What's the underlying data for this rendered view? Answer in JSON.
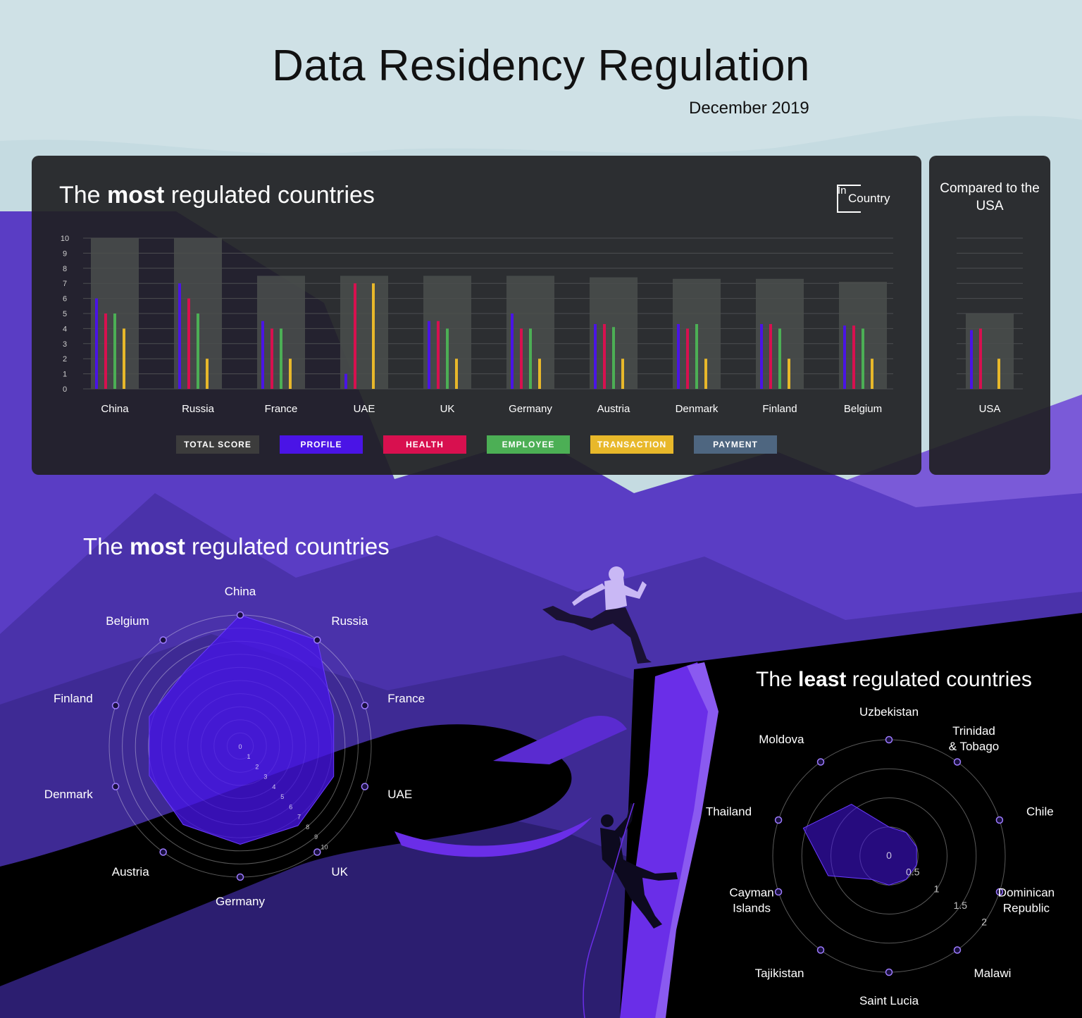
{
  "header": {
    "title": "Data Residency Regulation",
    "date": "December 2019"
  },
  "bar_panel": {
    "title_prefix": "The ",
    "title_bold": "most",
    "title_suffix": " regulated countries",
    "logo_in": "In",
    "logo_country": "Country"
  },
  "usa_panel": {
    "title": "Compared to the USA"
  },
  "legend": [
    {
      "label": "TOTAL SCORE",
      "color": "#3c3c3c"
    },
    {
      "label": "PROFILE",
      "color": "#4a14e6"
    },
    {
      "label": "HEALTH",
      "color": "#d8104f"
    },
    {
      "label": "EMPLOYEE",
      "color": "#4caf55"
    },
    {
      "label": "TRANSACTION",
      "color": "#e8b82a"
    },
    {
      "label": "PAYMENT",
      "color": "#4e6680"
    }
  ],
  "radar_most": {
    "title_prefix": "The ",
    "title_bold": "most",
    "title_suffix": " regulated countries"
  },
  "radar_least": {
    "title_prefix": "The ",
    "title_bold": "least",
    "title_suffix": " regulated countries"
  },
  "chart_data": [
    {
      "type": "bar",
      "title": "The most regulated countries",
      "categories": [
        "China",
        "Russia",
        "France",
        "UAE",
        "UK",
        "Germany",
        "Austria",
        "Denmark",
        "Finland",
        "Belgium"
      ],
      "ylim": [
        0,
        10
      ],
      "yticks": [
        "0",
        "1",
        "2",
        "3",
        "4",
        "5",
        "6",
        "7",
        "8",
        "9",
        "10"
      ],
      "series": [
        {
          "name": "TOTAL SCORE",
          "color": "#4a4d4c",
          "values": [
            10,
            10,
            7.5,
            7.5,
            7.5,
            7.5,
            7.4,
            7.3,
            7.3,
            7.1
          ]
        },
        {
          "name": "PROFILE",
          "color": "#4a14e6",
          "values": [
            6,
            7,
            4.5,
            1,
            4.5,
            5,
            4.3,
            4.3,
            4.3,
            4.2
          ]
        },
        {
          "name": "HEALTH",
          "color": "#d8104f",
          "values": [
            5,
            6,
            4,
            7,
            4.5,
            4,
            4.3,
            4,
            4.3,
            4.2
          ]
        },
        {
          "name": "EMPLOYEE",
          "color": "#4caf55",
          "values": [
            5,
            5,
            4,
            0,
            4,
            4,
            4.1,
            4.3,
            4,
            4
          ]
        },
        {
          "name": "TRANSACTION",
          "color": "#e8b82a",
          "values": [
            4,
            2,
            2,
            7,
            2,
            2,
            2,
            2,
            2,
            2
          ]
        }
      ],
      "grid": true
    },
    {
      "type": "bar",
      "title": "Compared to the USA",
      "categories": [
        "USA"
      ],
      "ylim": [
        0,
        10
      ],
      "series": [
        {
          "name": "TOTAL SCORE",
          "color": "#4a4d4c",
          "values": [
            5
          ]
        },
        {
          "name": "PROFILE",
          "color": "#4a14e6",
          "values": [
            3.9
          ]
        },
        {
          "name": "HEALTH",
          "color": "#d8104f",
          "values": [
            4
          ]
        },
        {
          "name": "EMPLOYEE",
          "color": "#4caf55",
          "values": [
            0
          ]
        },
        {
          "name": "TRANSACTION",
          "color": "#e8b82a",
          "values": [
            2
          ]
        }
      ],
      "grid": true
    },
    {
      "type": "radar",
      "title": "The most regulated countries",
      "categories": [
        "China",
        "Russia",
        "France",
        "UAE",
        "UK",
        "Germany",
        "Austria",
        "Denmark",
        "Finland",
        "Belgium"
      ],
      "ticks": [
        "0",
        "1",
        "2",
        "3",
        "4",
        "5",
        "6",
        "7",
        "8",
        "9",
        "10"
      ],
      "rlim": [
        0,
        10
      ],
      "values": [
        10,
        10,
        7.5,
        7.5,
        7.5,
        7.5,
        7.4,
        7.3,
        7.3,
        7.1
      ]
    },
    {
      "type": "radar",
      "title": "The least regulated countries",
      "categories": [
        "Uzbekistan",
        "Trinidad & Tobago",
        "Chile",
        "Dominican Republic",
        "Malawi",
        "Saint Lucia",
        "Tajikistan",
        "Cayman Islands",
        "Thailand",
        "Moldova"
      ],
      "ticks": [
        "0",
        "0.5",
        "1",
        "1.5",
        "2"
      ],
      "rlim": [
        0,
        2
      ],
      "values": [
        0.5,
        0.5,
        0.5,
        0.5,
        0.5,
        0.5,
        0.5,
        1.1,
        1.55,
        1.1
      ]
    }
  ]
}
